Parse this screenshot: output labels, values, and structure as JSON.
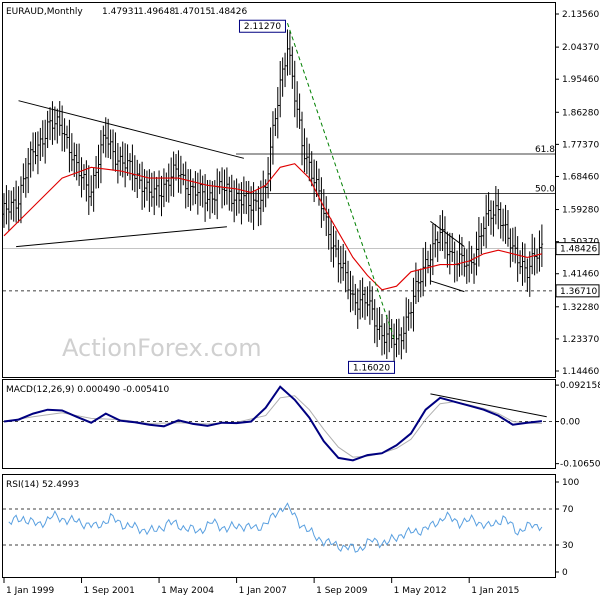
{
  "chart_data": [
    {
      "type": "line",
      "header": {
        "symbol": "EURAUD,Monthly",
        "open": "1.47931",
        "high": "1.49648",
        "low": "1.47015",
        "close": "1.48426"
      },
      "watermark": "ActionForex.com",
      "y_ticks": [
        "2.13560",
        "2.04370",
        "1.95460",
        "1.86280",
        "1.77370",
        "1.68460",
        "1.59280",
        "1.50370",
        "1.41460",
        "1.32280",
        "1.23370",
        "1.14460"
      ],
      "y_tick_values": [
        2.1356,
        2.0437,
        1.9546,
        1.8628,
        1.7737,
        1.6846,
        1.5928,
        1.5037,
        1.4146,
        1.3228,
        1.2337,
        1.1446
      ],
      "ylim": [
        1.1446,
        2.1356
      ],
      "current_price": {
        "value": 1.48426,
        "label": "1.48426",
        "color": "#000000"
      },
      "support": {
        "value": 1.3671,
        "label": "1.36710"
      },
      "fib_levels": [
        {
          "label": "61.8",
          "value": 1.747
        },
        {
          "label": "50.0",
          "value": 1.637
        }
      ],
      "callouts": [
        {
          "label": "2.11270",
          "value": 2.1127,
          "date": "2008-10"
        },
        {
          "label": "1.16020",
          "value": 1.1602,
          "date": "2012-07"
        }
      ],
      "price_series": {
        "dates": [
          "1999-01",
          "1999-07",
          "2000-01",
          "2000-07",
          "2001-01",
          "2001-07",
          "2002-01",
          "2002-07",
          "2003-01",
          "2003-07",
          "2004-01",
          "2004-07",
          "2005-01",
          "2005-07",
          "2006-01",
          "2006-07",
          "2007-01",
          "2007-07",
          "2008-01",
          "2008-04",
          "2008-07",
          "2008-10",
          "2009-01",
          "2009-04",
          "2009-07",
          "2010-01",
          "2010-07",
          "2011-01",
          "2011-07",
          "2012-01",
          "2012-07",
          "2013-01",
          "2013-07",
          "2014-01",
          "2014-07",
          "2015-01",
          "2015-07",
          "2016-01",
          "2016-07",
          "2017-01",
          "2017-07"
        ],
        "values": [
          1.58,
          1.63,
          1.75,
          1.82,
          1.83,
          1.7,
          1.65,
          1.8,
          1.72,
          1.7,
          1.63,
          1.66,
          1.7,
          1.64,
          1.63,
          1.65,
          1.63,
          1.6,
          1.65,
          1.8,
          1.95,
          2.05,
          1.9,
          1.78,
          1.72,
          1.58,
          1.45,
          1.35,
          1.33,
          1.25,
          1.22,
          1.32,
          1.45,
          1.52,
          1.46,
          1.43,
          1.55,
          1.6,
          1.47,
          1.43,
          1.48
        ]
      },
      "sma": {
        "color": "#e00000",
        "dates": [
          "1999-01",
          "2000-01",
          "2001-01",
          "2002-01",
          "2003-01",
          "2004-01",
          "2005-01",
          "2006-01",
          "2007-01",
          "2007-07",
          "2008-01",
          "2008-07",
          "2009-01",
          "2009-07",
          "2010-01",
          "2010-07",
          "2011-01",
          "2011-07",
          "2012-01",
          "2012-07",
          "2013-01",
          "2013-07",
          "2014-01",
          "2014-07",
          "2015-01",
          "2015-07",
          "2016-01",
          "2016-07",
          "2017-01",
          "2017-07"
        ],
        "values": [
          1.52,
          1.6,
          1.68,
          1.71,
          1.7,
          1.68,
          1.68,
          1.66,
          1.65,
          1.64,
          1.66,
          1.71,
          1.72,
          1.68,
          1.6,
          1.53,
          1.46,
          1.41,
          1.37,
          1.38,
          1.42,
          1.43,
          1.44,
          1.44,
          1.45,
          1.47,
          1.48,
          1.47,
          1.46,
          1.47
        ]
      },
      "trendlines": [
        {
          "from": {
            "date": "1999-06",
            "value": 1.49
          },
          "to": {
            "date": "2006-09",
            "value": 1.545
          }
        },
        {
          "from": {
            "date": "1999-07",
            "value": 1.895
          },
          "to": {
            "date": "2007-04",
            "value": 1.735
          }
        },
        {
          "from": {
            "date": "2008-10",
            "value": 2.11
          },
          "to": {
            "date": "2012-06",
            "value": 1.235
          },
          "style": "dashed",
          "color": "#008000"
        },
        {
          "from": {
            "date": "2013-09",
            "value": 1.56
          },
          "to": {
            "date": "2014-11",
            "value": 1.49
          }
        },
        {
          "from": {
            "date": "2013-09",
            "value": 1.395
          },
          "to": {
            "date": "2014-11",
            "value": 1.365
          }
        }
      ]
    },
    {
      "type": "line",
      "title": "MACD(12,26,9) 0.000490 -0.005410",
      "y_ticks": [
        "0.092158",
        "0.00",
        "-0.106503"
      ],
      "y_tick_values": [
        0.092158,
        0,
        -0.106503
      ],
      "ylim": [
        -0.115,
        0.1
      ],
      "zero_line": 0,
      "macd": {
        "color": "#000080",
        "dates": [
          "1999-01",
          "1999-07",
          "2000-01",
          "2000-07",
          "2001-01",
          "2001-07",
          "2002-01",
          "2002-07",
          "2003-01",
          "2003-07",
          "2004-01",
          "2004-07",
          "2005-01",
          "2005-07",
          "2006-01",
          "2006-07",
          "2007-01",
          "2007-07",
          "2008-01",
          "2008-07",
          "2009-01",
          "2009-07",
          "2010-01",
          "2010-07",
          "2011-01",
          "2011-07",
          "2012-01",
          "2012-07",
          "2013-01",
          "2013-07",
          "2014-01",
          "2014-07",
          "2015-01",
          "2015-07",
          "2016-01",
          "2016-07",
          "2017-01",
          "2017-07"
        ],
        "values": [
          0.0,
          0.005,
          0.02,
          0.03,
          0.028,
          0.012,
          -0.003,
          0.02,
          0.002,
          -0.002,
          -0.008,
          -0.012,
          0.003,
          -0.006,
          -0.011,
          -0.003,
          -0.004,
          0.0,
          0.035,
          0.088,
          0.055,
          0.01,
          -0.05,
          -0.092,
          -0.098,
          -0.085,
          -0.08,
          -0.06,
          -0.03,
          0.03,
          0.06,
          0.05,
          0.04,
          0.03,
          0.015,
          -0.008,
          -0.003,
          0.001
        ]
      },
      "signal": {
        "color": "#b0b0b0",
        "dates": [
          "1999-01",
          "2000-01",
          "2001-01",
          "2002-01",
          "2003-01",
          "2004-01",
          "2005-01",
          "2006-01",
          "2007-01",
          "2008-01",
          "2008-07",
          "2009-01",
          "2009-07",
          "2010-01",
          "2010-07",
          "2011-01",
          "2011-07",
          "2012-01",
          "2012-07",
          "2013-01",
          "2013-07",
          "2014-01",
          "2014-07",
          "2015-01",
          "2015-07",
          "2016-01",
          "2016-07",
          "2017-01",
          "2017-07"
        ],
        "values": [
          0.0,
          0.012,
          0.022,
          0.008,
          0.005,
          -0.005,
          -0.003,
          -0.006,
          -0.002,
          0.015,
          0.06,
          0.065,
          0.03,
          -0.02,
          -0.065,
          -0.09,
          -0.088,
          -0.08,
          -0.068,
          -0.045,
          0.005,
          0.045,
          0.05,
          0.042,
          0.033,
          0.02,
          0.0,
          -0.004,
          -0.005
        ]
      },
      "trendline": {
        "from": {
          "date": "2013-09",
          "value": 0.07
        },
        "to": {
          "date": "2017-09",
          "value": 0.012
        }
      }
    },
    {
      "type": "line",
      "title": "RSI(14) 52.4993",
      "y_ticks": [
        "100",
        "70",
        "30",
        "0"
      ],
      "y_tick_values": [
        100,
        70,
        30,
        0
      ],
      "ylim": [
        0,
        100
      ],
      "levels": [
        70,
        30
      ],
      "rsi": {
        "color": "#5aa0e0",
        "dates": [
          "1999-03",
          "1999-09",
          "2000-03",
          "2000-09",
          "2001-03",
          "2001-09",
          "2002-03",
          "2002-09",
          "2003-03",
          "2003-09",
          "2004-03",
          "2004-09",
          "2005-03",
          "2005-09",
          "2006-03",
          "2006-09",
          "2007-03",
          "2007-09",
          "2008-03",
          "2008-09",
          "2009-03",
          "2009-09",
          "2010-03",
          "2010-09",
          "2011-03",
          "2011-09",
          "2012-03",
          "2012-09",
          "2013-03",
          "2013-09",
          "2014-03",
          "2014-09",
          "2015-03",
          "2015-09",
          "2016-03",
          "2016-09",
          "2017-03",
          "2017-07"
        ],
        "values": [
          55,
          60,
          52,
          62,
          58,
          55,
          50,
          60,
          52,
          48,
          45,
          55,
          50,
          45,
          55,
          48,
          52,
          48,
          58,
          75,
          55,
          40,
          32,
          28,
          25,
          35,
          32,
          42,
          45,
          50,
          62,
          55,
          58,
          50,
          60,
          45,
          52,
          52
        ]
      }
    }
  ],
  "x_axis": {
    "tick_labels": [
      "1 Jan 1999",
      "1 Sep 2001",
      "1 May 2004",
      "1 Jan 2007",
      "1 Sep 2009",
      "1 May 2012",
      "1 Jan 2015"
    ],
    "tick_dates": [
      "1999-01",
      "2001-09",
      "2004-05",
      "2007-01",
      "2009-09",
      "2012-05",
      "2015-01"
    ],
    "range": [
      "1999-01",
      "2017-12"
    ]
  }
}
